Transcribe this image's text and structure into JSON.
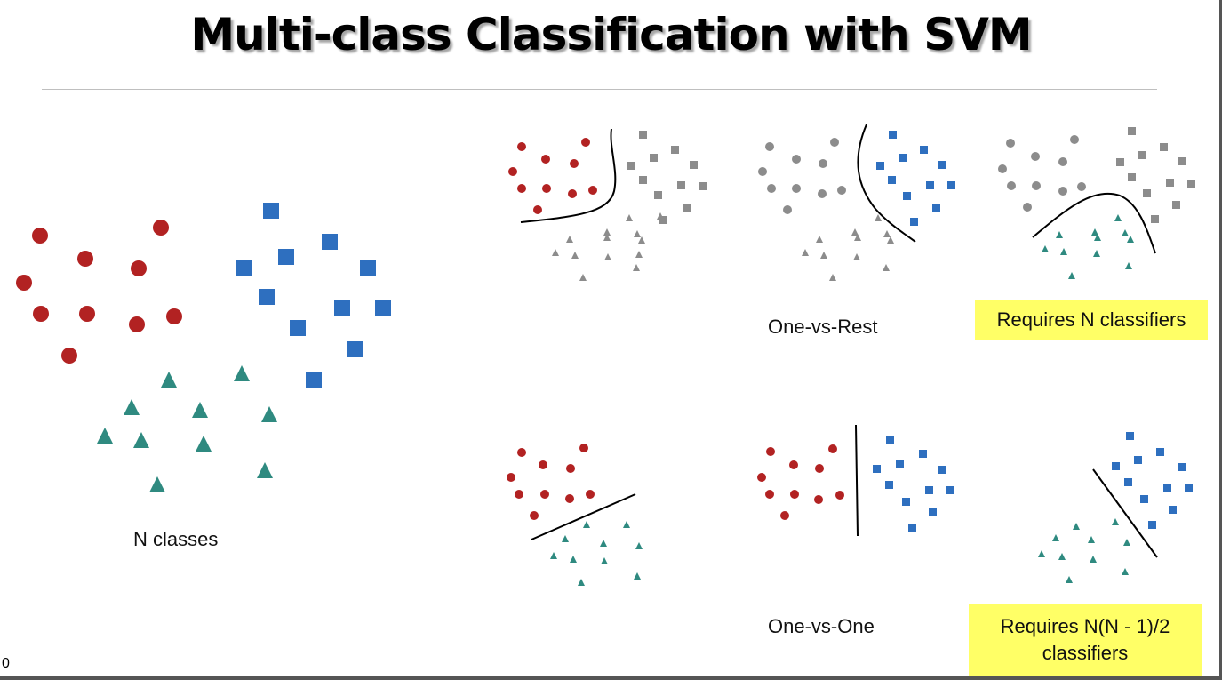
{
  "slide": {
    "title": "Multi-class Classification with SVM",
    "page_number": "0"
  },
  "labels": {
    "n_classes": "N classes",
    "one_vs_rest": "One-vs-Rest",
    "one_vs_one": "One-vs-One"
  },
  "callouts": {
    "ovr_requirement": "Requires N classifiers",
    "ovo_requirement": "Requires N(N - 1)/2 classifiers"
  },
  "colors": {
    "red": "#b22222",
    "blue": "#2e6fbf",
    "teal": "#2f8a80",
    "gray": "#8c8c8c",
    "callout_fill": "#ffff66",
    "boundary": "#000000"
  },
  "legend_shapes": {
    "class_a": "circle",
    "class_b": "square",
    "class_c": "triangle"
  }
}
